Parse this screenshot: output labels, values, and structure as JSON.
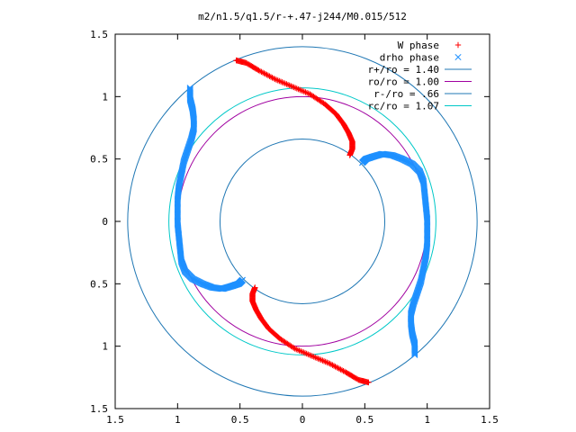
{
  "chart_data": {
    "type": "scatter",
    "title": "m2/n1.5/q1.5/r-+.47-j244/M0.015/512",
    "xlim": [
      -1.5,
      1.5
    ],
    "ylim": [
      -1.5,
      1.5
    ],
    "x_ticks": [
      -1.5,
      -1,
      -0.5,
      0,
      0.5,
      1,
      1.5
    ],
    "y_ticks": [
      -1.5,
      -1,
      -0.5,
      0,
      0.5,
      1,
      1.5
    ],
    "x_tick_labels": [
      "1.5",
      "1",
      "0.5",
      "0",
      "0.5",
      "1",
      "1.5"
    ],
    "y_tick_labels": [
      "1.5",
      "1",
      "0.5",
      "0",
      "0.5",
      "1",
      "1.5"
    ],
    "grid": false,
    "legend_position": "top-right",
    "series": [
      {
        "name": "W phase",
        "kind": "points",
        "marker": "+",
        "color": "#ff0000",
        "paths": [
          [
            [
              -0.53,
              1.29
            ],
            [
              -0.45,
              1.27
            ],
            [
              -0.35,
              1.21
            ],
            [
              -0.22,
              1.14
            ],
            [
              -0.08,
              1.08
            ],
            [
              0.06,
              1.02
            ],
            [
              0.18,
              0.94
            ],
            [
              0.27,
              0.86
            ],
            [
              0.33,
              0.78
            ],
            [
              0.37,
              0.71
            ],
            [
              0.4,
              0.64
            ],
            [
              0.4,
              0.58
            ],
            [
              0.38,
              0.53
            ]
          ],
          [
            [
              0.53,
              -1.29
            ],
            [
              0.45,
              -1.27
            ],
            [
              0.35,
              -1.21
            ],
            [
              0.22,
              -1.14
            ],
            [
              0.08,
              -1.08
            ],
            [
              -0.06,
              -1.02
            ],
            [
              -0.18,
              -0.94
            ],
            [
              -0.27,
              -0.86
            ],
            [
              -0.33,
              -0.78
            ],
            [
              -0.37,
              -0.71
            ],
            [
              -0.4,
              -0.64
            ],
            [
              -0.4,
              -0.58
            ],
            [
              -0.38,
              -0.53
            ]
          ]
        ]
      },
      {
        "name": "drho phase",
        "kind": "points",
        "marker": "x",
        "color": "#1e90ff",
        "paths": [
          [
            [
              -0.9,
              1.07
            ],
            [
              -0.9,
              0.98
            ],
            [
              -0.88,
              0.9
            ],
            [
              -0.87,
              0.82
            ],
            [
              -0.87,
              0.74
            ],
            [
              -0.89,
              0.66
            ],
            [
              -0.92,
              0.57
            ],
            [
              -0.95,
              0.48
            ],
            [
              -0.97,
              0.38
            ],
            [
              -0.99,
              0.28
            ],
            [
              -1.0,
              0.18
            ],
            [
              -1.0,
              0.08
            ],
            [
              -1.0,
              -0.02
            ],
            [
              -0.99,
              -0.12
            ],
            [
              -0.98,
              -0.22
            ],
            [
              -0.97,
              -0.32
            ],
            [
              -0.94,
              -0.4
            ],
            [
              -0.88,
              -0.46
            ],
            [
              -0.8,
              -0.5
            ],
            [
              -0.72,
              -0.53
            ],
            [
              -0.64,
              -0.54
            ],
            [
              -0.57,
              -0.52
            ],
            [
              -0.51,
              -0.5
            ],
            [
              -0.48,
              -0.47
            ]
          ],
          [
            [
              0.9,
              -1.07
            ],
            [
              0.9,
              -0.98
            ],
            [
              0.88,
              -0.9
            ],
            [
              0.87,
              -0.82
            ],
            [
              0.87,
              -0.74
            ],
            [
              0.89,
              -0.66
            ],
            [
              0.92,
              -0.57
            ],
            [
              0.95,
              -0.48
            ],
            [
              0.97,
              -0.38
            ],
            [
              0.99,
              -0.28
            ],
            [
              1.0,
              -0.18
            ],
            [
              1.0,
              -0.08
            ],
            [
              1.0,
              0.02
            ],
            [
              0.99,
              0.12
            ],
            [
              0.98,
              0.22
            ],
            [
              0.97,
              0.32
            ],
            [
              0.94,
              0.4
            ],
            [
              0.88,
              0.46
            ],
            [
              0.8,
              0.5
            ],
            [
              0.72,
              0.53
            ],
            [
              0.64,
              0.54
            ],
            [
              0.57,
              0.52
            ],
            [
              0.51,
              0.5
            ],
            [
              0.48,
              0.47
            ]
          ]
        ]
      },
      {
        "name": "r+/ro = 1.40",
        "kind": "circle",
        "radius": 1.4,
        "color": "#1f77b4"
      },
      {
        "name": "ro/ro = 1.00",
        "kind": "circle",
        "radius": 1.0,
        "color": "#a000a0"
      },
      {
        "name": "r-/ro = .66",
        "kind": "circle",
        "radius": 0.66,
        "color": "#1f77b4"
      },
      {
        "name": "rc/ro = 1.07",
        "kind": "circle",
        "radius": 1.07,
        "color": "#00c8c8"
      }
    ]
  }
}
